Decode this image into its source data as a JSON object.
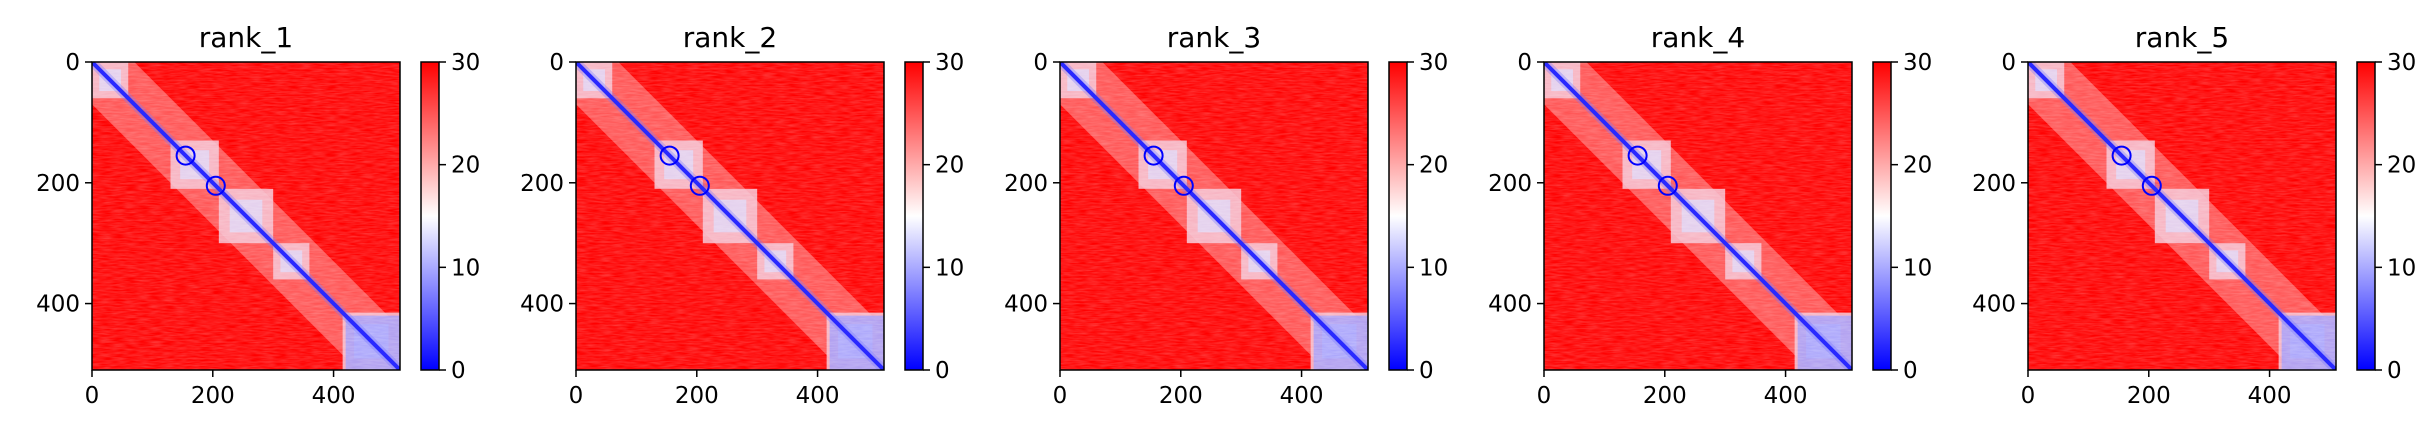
{
  "chart_data": [
    {
      "type": "heatmap",
      "title": "rank_1",
      "x_ticks": [
        0,
        200,
        400
      ],
      "y_ticks": [
        0,
        200,
        400
      ],
      "xlim": [
        0,
        510
      ],
      "ylim": [
        510,
        0
      ],
      "colorbar": {
        "ticks": [
          0,
          10,
          20,
          30
        ],
        "range": [
          0,
          30
        ]
      },
      "diagonal_blocks": [
        [
          0,
          60
        ],
        [
          130,
          210
        ],
        [
          210,
          300
        ],
        [
          300,
          360
        ],
        [
          415,
          510
        ]
      ]
    },
    {
      "type": "heatmap",
      "title": "rank_2",
      "x_ticks": [
        0,
        200,
        400
      ],
      "y_ticks": [
        0,
        200,
        400
      ],
      "xlim": [
        0,
        510
      ],
      "ylim": [
        510,
        0
      ],
      "colorbar": {
        "ticks": [
          0,
          10,
          20,
          30
        ],
        "range": [
          0,
          30
        ]
      },
      "diagonal_blocks": [
        [
          0,
          60
        ],
        [
          130,
          210
        ],
        [
          210,
          300
        ],
        [
          300,
          360
        ],
        [
          415,
          510
        ]
      ]
    },
    {
      "type": "heatmap",
      "title": "rank_3",
      "x_ticks": [
        0,
        200,
        400
      ],
      "y_ticks": [
        0,
        200,
        400
      ],
      "xlim": [
        0,
        510
      ],
      "ylim": [
        510,
        0
      ],
      "colorbar": {
        "ticks": [
          0,
          10,
          20,
          30
        ],
        "range": [
          0,
          30
        ]
      },
      "diagonal_blocks": [
        [
          0,
          60
        ],
        [
          130,
          210
        ],
        [
          210,
          300
        ],
        [
          300,
          360
        ],
        [
          415,
          510
        ]
      ]
    },
    {
      "type": "heatmap",
      "title": "rank_4",
      "x_ticks": [
        0,
        200,
        400
      ],
      "y_ticks": [
        0,
        200,
        400
      ],
      "xlim": [
        0,
        510
      ],
      "ylim": [
        510,
        0
      ],
      "colorbar": {
        "ticks": [
          0,
          10,
          20,
          30
        ],
        "range": [
          0,
          30
        ]
      },
      "diagonal_blocks": [
        [
          0,
          60
        ],
        [
          130,
          210
        ],
        [
          210,
          300
        ],
        [
          300,
          360
        ],
        [
          415,
          510
        ]
      ]
    },
    {
      "type": "heatmap",
      "title": "rank_5",
      "x_ticks": [
        0,
        200,
        400
      ],
      "y_ticks": [
        0,
        200,
        400
      ],
      "xlim": [
        0,
        510
      ],
      "ylim": [
        510,
        0
      ],
      "colorbar": {
        "ticks": [
          0,
          10,
          20,
          30
        ],
        "range": [
          0,
          30
        ]
      },
      "diagonal_blocks": [
        [
          0,
          60
        ],
        [
          130,
          210
        ],
        [
          210,
          300
        ],
        [
          300,
          360
        ],
        [
          415,
          510
        ]
      ]
    }
  ],
  "colors": {
    "low": "#0000ff",
    "mid": "#ffffff",
    "high": "#ff0000"
  }
}
